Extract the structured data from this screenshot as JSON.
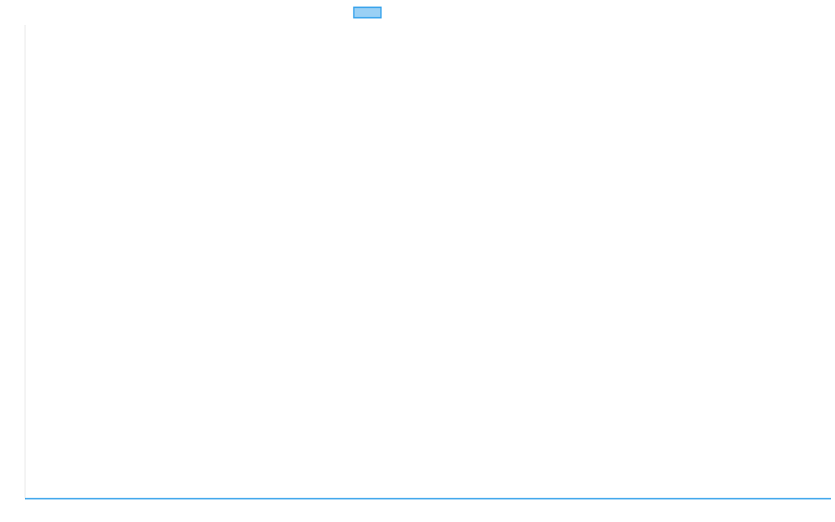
{
  "chart_data": {
    "type": "line",
    "title": "",
    "xlabel": "",
    "ylabel": "",
    "categories": [],
    "series": [
      {
        "values": [],
        "color": "#36a2eb",
        "fill": "#9ad0f5"
      }
    ],
    "legend": "top",
    "grid": false
  }
}
